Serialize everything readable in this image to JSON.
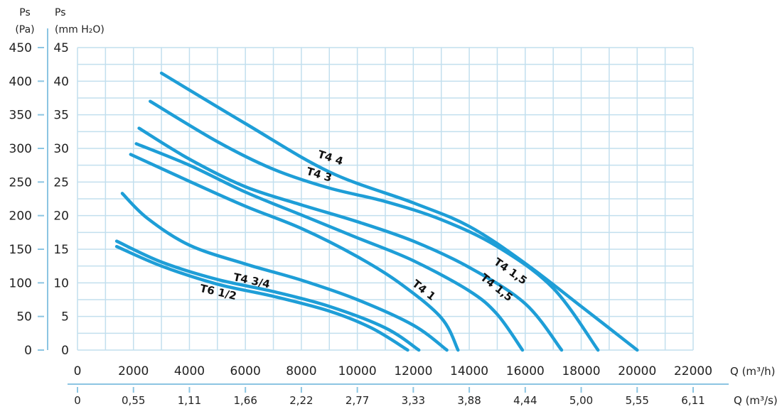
{
  "colors": {
    "curve": "#1e9ed7",
    "grid": "#c2dfee",
    "axis": "#8cc5e2",
    "text": "#222222"
  },
  "labels": {
    "pa_head_1": "Ps",
    "pa_head_2": "(Pa)",
    "mm_head_1": "Ps",
    "mm_head_2": "(mm H₂O)",
    "q_m3h": "Q (m³/h)",
    "q_m3s": "Q (m³/s)"
  },
  "chart_data": {
    "type": "line",
    "xlabel": "Q (m³/h)",
    "xlabel_secondary": "Q (m³/s)",
    "ylabel": "Ps (mm H₂O)",
    "ylabel_secondary": "Ps (Pa)",
    "xlim": [
      0,
      22000
    ],
    "ylim": [
      0,
      45
    ],
    "ylim_secondary": [
      0,
      450
    ],
    "grid": true,
    "x_ticks": [
      0,
      2000,
      4000,
      6000,
      8000,
      10000,
      12000,
      14000,
      16000,
      18000,
      20000,
      22000
    ],
    "y_ticks": [
      0,
      5,
      10,
      15,
      20,
      25,
      30,
      35,
      40,
      45
    ],
    "y_ticks_pa": [
      0,
      50,
      100,
      150,
      200,
      250,
      300,
      350,
      400,
      450
    ],
    "x_ticks_m3s": [
      "0",
      "0,55",
      "1,11",
      "1,66",
      "2,22",
      "2,77",
      "3,33",
      "3,88",
      "4,44",
      "5,00",
      "5,55",
      "6,11"
    ],
    "series": [
      {
        "name": "T4 4",
        "points": [
          [
            3000,
            41.2
          ],
          [
            6000,
            33.7
          ],
          [
            9000,
            26.5
          ],
          [
            12000,
            21.9
          ],
          [
            14000,
            18.4
          ],
          [
            16000,
            12.9
          ],
          [
            18000,
            6.5
          ],
          [
            20000,
            0
          ]
        ]
      },
      {
        "name": "T4 3",
        "points": [
          [
            2600,
            37
          ],
          [
            5000,
            31
          ],
          [
            7000,
            26.9
          ],
          [
            9000,
            24.1
          ],
          [
            11000,
            22.1
          ],
          [
            13000,
            19.4
          ],
          [
            15000,
            15.4
          ],
          [
            17000,
            9.2
          ],
          [
            18600,
            0
          ]
        ]
      },
      {
        "name": "T4 1,5",
        "points": [
          [
            2200,
            33
          ],
          [
            4000,
            28.4
          ],
          [
            6000,
            24.3
          ],
          [
            8000,
            21.6
          ],
          [
            10000,
            19.1
          ],
          [
            12000,
            16.2
          ],
          [
            14000,
            12.3
          ],
          [
            16000,
            6.9
          ],
          [
            17300,
            0
          ]
        ]
      },
      {
        "name": "T4 1,5",
        "points": [
          [
            2100,
            30.7
          ],
          [
            4000,
            27.5
          ],
          [
            6000,
            23.5
          ],
          [
            8000,
            20.1
          ],
          [
            10000,
            16.7
          ],
          [
            12000,
            13.3
          ],
          [
            14000,
            8.8
          ],
          [
            15000,
            5.3
          ],
          [
            15900,
            0
          ]
        ]
      },
      {
        "name": "T4 1",
        "points": [
          [
            1900,
            29.1
          ],
          [
            4000,
            25.1
          ],
          [
            6000,
            21.4
          ],
          [
            8000,
            18.1
          ],
          [
            10000,
            13.9
          ],
          [
            11500,
            10
          ],
          [
            13000,
            4.8
          ],
          [
            13600,
            0
          ]
        ]
      },
      {
        "name": "T4 3/4",
        "points": [
          [
            1600,
            23.3
          ],
          [
            2500,
            19.6
          ],
          [
            4000,
            15.6
          ],
          [
            6000,
            12.8
          ],
          [
            8000,
            10.4
          ],
          [
            10000,
            7.5
          ],
          [
            12000,
            3.7
          ],
          [
            13200,
            0
          ]
        ]
      },
      {
        "name": "",
        "points": [
          [
            1400,
            16.2
          ],
          [
            3000,
            13.1
          ],
          [
            5000,
            10.5
          ],
          [
            7000,
            8.7
          ],
          [
            9000,
            6.5
          ],
          [
            11000,
            3.3
          ],
          [
            12200,
            0
          ]
        ]
      },
      {
        "name": "T6 1/2",
        "points": [
          [
            1400,
            15.4
          ],
          [
            3000,
            12.5
          ],
          [
            5000,
            9.8
          ],
          [
            7000,
            8
          ],
          [
            9000,
            5.8
          ],
          [
            10500,
            3.3
          ],
          [
            11800,
            0
          ]
        ]
      }
    ],
    "curve_labels": [
      {
        "text": "T4 4",
        "x": 9000,
        "y": 28.1,
        "angle": 18
      },
      {
        "text": "T4 3",
        "x": 8600,
        "y": 25.6,
        "angle": 17
      },
      {
        "text": "T4 1,5",
        "x": 15400,
        "y": 11.3,
        "angle": 35
      },
      {
        "text": "T4 1,5",
        "x": 14900,
        "y": 8.9,
        "angle": 38
      },
      {
        "text": "T4 1",
        "x": 12300,
        "y": 8.5,
        "angle": 38
      },
      {
        "text": "T4 3/4",
        "x": 6200,
        "y": 9.8,
        "angle": 12
      },
      {
        "text": "T6 1/2",
        "x": 5000,
        "y": 8.1,
        "angle": 13
      }
    ]
  }
}
